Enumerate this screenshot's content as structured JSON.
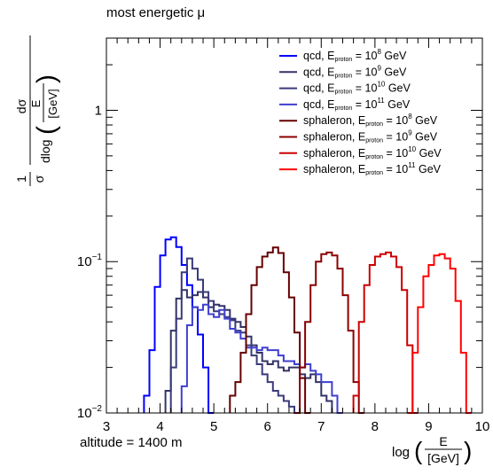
{
  "chart_data": {
    "type": "line",
    "title": "most energetic μ",
    "annotation": "altitude = 1400 m",
    "xlabel": {
      "prefix": "log",
      "num": "E",
      "den": "[GeV]"
    },
    "ylabel": {
      "pre": "1",
      "pre_den": "σ",
      "frac_num": "dσ",
      "den_prefix": "dlog",
      "den_num": "E",
      "den_den": "[GeV]"
    },
    "xlim": [
      3,
      10
    ],
    "ylim": [
      0.01,
      3.0
    ],
    "yscale": "log",
    "x_ticks": [
      3,
      4,
      5,
      6,
      7,
      8,
      9,
      10
    ],
    "y_ticks": [
      {
        "value": 0.01,
        "base": "10",
        "exp": "−2"
      },
      {
        "value": 0.1,
        "base": "10",
        "exp": "−1"
      },
      {
        "value": 1,
        "base": "1",
        "exp": ""
      }
    ],
    "legend_position": "top-right",
    "bin_width": 0.1,
    "series": [
      {
        "name": "qcd, E_proton = 10^8 GeV",
        "label_main": "qcd, E",
        "label_sub": "proton",
        "label_mid": " = 10",
        "label_exp": "8",
        "label_end": " GeV",
        "color": "#0000ff",
        "x": [
          3.7,
          3.8,
          3.9,
          4.0,
          4.1,
          4.2,
          4.3,
          4.4,
          4.5,
          4.6,
          4.7,
          4.8,
          4.9
        ],
        "values": [
          0.013,
          0.026,
          0.068,
          0.11,
          0.14,
          0.145,
          0.125,
          0.095,
          0.07,
          0.05,
          0.033,
          0.02,
          0.01
        ]
      },
      {
        "name": "qcd, E_proton = 10^9 GeV",
        "label_main": "qcd, E",
        "label_sub": "proton",
        "label_mid": " = 10",
        "label_exp": "9",
        "label_end": " GeV",
        "color": "#333366",
        "x": [
          4.1,
          4.2,
          4.3,
          4.4,
          4.5,
          4.6,
          4.7,
          4.8,
          4.9,
          5.0,
          5.1,
          5.2,
          5.3,
          5.4,
          5.5,
          5.6,
          5.7,
          5.8,
          5.9,
          6.0,
          6.1,
          6.2,
          6.3,
          6.4,
          6.5,
          6.6,
          6.7,
          6.8,
          6.9,
          7.0,
          7.1
        ],
        "values": [
          0.014,
          0.035,
          0.057,
          0.065,
          0.058,
          0.06,
          0.063,
          0.058,
          0.05,
          0.052,
          0.051,
          0.048,
          0.042,
          0.04,
          0.037,
          0.032,
          0.028,
          0.025,
          0.022,
          0.021,
          0.022,
          0.02,
          0.019,
          0.02,
          0.02,
          0.018,
          0.017,
          0.018,
          0.016,
          0.013,
          0.012
        ]
      },
      {
        "name": "qcd, E_proton = 10^10 GeV",
        "label_main": "qcd, E",
        "label_sub": "proton",
        "label_mid": " = 10",
        "label_exp": "10",
        "label_end": " GeV",
        "color": "#3a3a7a",
        "x": [
          4.2,
          4.3,
          4.4,
          4.5,
          4.6,
          4.7,
          4.8,
          4.9,
          5.0,
          5.1,
          5.2,
          5.3,
          5.4,
          5.5,
          5.6,
          5.7,
          5.8,
          5.9,
          6.0,
          6.1,
          6.2,
          6.3,
          6.4,
          6.5
        ],
        "values": [
          0.02,
          0.042,
          0.085,
          0.105,
          0.09,
          0.076,
          0.063,
          0.055,
          0.047,
          0.045,
          0.043,
          0.041,
          0.035,
          0.034,
          0.028,
          0.024,
          0.021,
          0.018,
          0.016,
          0.014,
          0.013,
          0.012,
          0.011,
          0.01
        ]
      },
      {
        "name": "qcd, E_proton = 10^11 GeV",
        "label_main": "qcd, E",
        "label_sub": "proton",
        "label_mid": " = 10",
        "label_exp": "11",
        "label_end": " GeV",
        "color": "#3f3fd0",
        "x": [
          4.4,
          4.5,
          4.6,
          4.7,
          4.8,
          4.9,
          5.0,
          5.1,
          5.2,
          5.3,
          5.4,
          5.5,
          5.6,
          5.7,
          5.8,
          5.9,
          6.0,
          6.1,
          6.2,
          6.3,
          6.4,
          6.5,
          6.6,
          6.7,
          6.8,
          6.9,
          7.0,
          7.1,
          7.2,
          7.3
        ],
        "values": [
          0.015,
          0.038,
          0.05,
          0.048,
          0.052,
          0.045,
          0.043,
          0.048,
          0.042,
          0.036,
          0.034,
          0.031,
          0.027,
          0.027,
          0.026,
          0.027,
          0.026,
          0.026,
          0.024,
          0.022,
          0.022,
          0.021,
          0.02,
          0.021,
          0.019,
          0.018,
          0.016,
          0.016,
          0.013,
          0.01
        ]
      },
      {
        "name": "sphaleron, E_proton = 10^8 GeV",
        "label_main": "sphaleron, E",
        "label_sub": "proton",
        "label_mid": " = 10",
        "label_exp": "8",
        "label_end": " GeV",
        "color": "#660000",
        "x": [
          5.3,
          5.4,
          5.5,
          5.6,
          5.7,
          5.8,
          5.9,
          6.0,
          6.1,
          6.2,
          6.3,
          6.4,
          6.5,
          6.6,
          6.7
        ],
        "values": [
          0.013,
          0.016,
          0.025,
          0.045,
          0.07,
          0.092,
          0.108,
          0.115,
          0.124,
          0.114,
          0.085,
          0.058,
          0.034,
          0.017,
          0.01
        ]
      },
      {
        "name": "sphaleron, E_proton = 10^9 GeV",
        "label_main": "sphaleron, E",
        "label_sub": "proton",
        "label_mid": " = 10",
        "label_exp": "9",
        "label_end": " GeV",
        "color": "#8b0000",
        "x": [
          6.5,
          6.6,
          6.7,
          6.8,
          6.9,
          7.0,
          7.1,
          7.2,
          7.3,
          7.4,
          7.5,
          7.6,
          7.7
        ],
        "values": [
          0.01,
          0.02,
          0.04,
          0.07,
          0.1,
          0.112,
          0.115,
          0.11,
          0.09,
          0.06,
          0.035,
          0.016,
          0.01
        ]
      },
      {
        "name": "sphaleron, E_proton = 10^10 GeV",
        "label_main": "sphaleron, E",
        "label_sub": "proton",
        "label_mid": " = 10",
        "label_exp": "10",
        "label_end": " GeV",
        "color": "#cc0000",
        "x": [
          7.6,
          7.7,
          7.8,
          7.9,
          8.0,
          8.1,
          8.2,
          8.3,
          8.4,
          8.5,
          8.6,
          8.7
        ],
        "values": [
          0.013,
          0.04,
          0.07,
          0.095,
          0.108,
          0.112,
          0.115,
          0.108,
          0.092,
          0.065,
          0.028,
          0.01
        ]
      },
      {
        "name": "sphaleron, E_proton = 10^11 GeV",
        "label_main": "sphaleron, E",
        "label_sub": "proton",
        "label_mid": " = 10",
        "label_exp": "11",
        "label_end": " GeV",
        "color": "#ff0000",
        "x": [
          8.6,
          8.7,
          8.8,
          8.9,
          9.0,
          9.1,
          9.2,
          9.3,
          9.4,
          9.5,
          9.6,
          9.7
        ],
        "values": [
          0.01,
          0.025,
          0.05,
          0.08,
          0.095,
          0.11,
          0.112,
          0.105,
          0.09,
          0.055,
          0.025,
          0.01
        ]
      }
    ]
  }
}
